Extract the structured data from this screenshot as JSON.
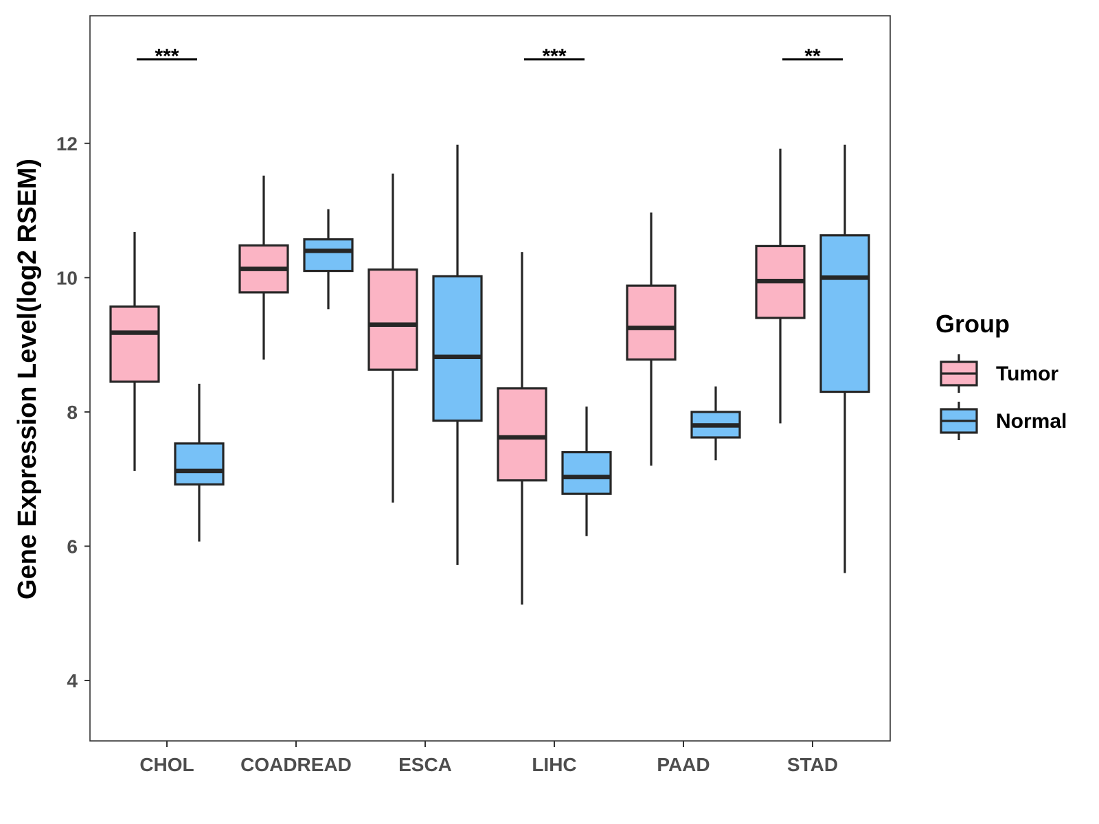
{
  "chart_data": {
    "type": "boxplot",
    "title": "",
    "xlabel": "",
    "ylabel": "Gene Expression Level(log2 RSEM)",
    "ylim": [
      3.1,
      13.9
    ],
    "yticks": [
      4,
      6,
      8,
      10,
      12
    ],
    "grid": false,
    "categories": [
      "CHOL",
      "COADREAD",
      "ESCA",
      "LIHC",
      "PAAD",
      "STAD"
    ],
    "legend": {
      "title": "Group",
      "placement": "right",
      "entries": [
        {
          "name": "Tumor",
          "color": "#fbb4c4"
        },
        {
          "name": "Normal",
          "color": "#77c1f7"
        }
      ]
    },
    "series": [
      {
        "name": "Tumor",
        "color": "#fbb4c4",
        "boxes": [
          {
            "category": "CHOL",
            "whisker_low": 7.12,
            "q1": 8.45,
            "median": 9.18,
            "q3": 9.57,
            "whisker_high": 10.68
          },
          {
            "category": "COADREAD",
            "whisker_low": 8.78,
            "q1": 9.78,
            "median": 10.13,
            "q3": 10.48,
            "whisker_high": 11.52
          },
          {
            "category": "ESCA",
            "whisker_low": 6.65,
            "q1": 8.63,
            "median": 9.3,
            "q3": 10.12,
            "whisker_high": 11.55
          },
          {
            "category": "LIHC",
            "whisker_low": 5.13,
            "q1": 6.98,
            "median": 7.62,
            "q3": 8.35,
            "whisker_high": 10.38
          },
          {
            "category": "PAAD",
            "whisker_low": 7.2,
            "q1": 8.78,
            "median": 9.25,
            "q3": 9.88,
            "whisker_high": 10.97
          },
          {
            "category": "STAD",
            "whisker_low": 7.83,
            "q1": 9.4,
            "median": 9.95,
            "q3": 10.47,
            "whisker_high": 11.92
          }
        ]
      },
      {
        "name": "Normal",
        "color": "#77c1f7",
        "boxes": [
          {
            "category": "CHOL",
            "whisker_low": 6.07,
            "q1": 6.92,
            "median": 7.12,
            "q3": 7.53,
            "whisker_high": 8.42
          },
          {
            "category": "COADREAD",
            "whisker_low": 9.53,
            "q1": 10.1,
            "median": 10.4,
            "q3": 10.57,
            "whisker_high": 11.02
          },
          {
            "category": "ESCA",
            "whisker_low": 5.72,
            "q1": 7.87,
            "median": 8.82,
            "q3": 10.02,
            "whisker_high": 11.98
          },
          {
            "category": "LIHC",
            "whisker_low": 6.15,
            "q1": 6.78,
            "median": 7.03,
            "q3": 7.4,
            "whisker_high": 8.08
          },
          {
            "category": "PAAD",
            "whisker_low": 7.28,
            "q1": 7.62,
            "median": 7.8,
            "q3": 8.0,
            "whisker_high": 8.38
          },
          {
            "category": "STAD",
            "whisker_low": 5.6,
            "q1": 8.3,
            "median": 10.0,
            "q3": 10.63,
            "whisker_high": 11.98
          }
        ]
      }
    ],
    "annotations": [
      {
        "category": "CHOL",
        "label": "***",
        "y": 13.25
      },
      {
        "category": "LIHC",
        "label": "***",
        "y": 13.25
      },
      {
        "category": "STAD",
        "label": "**",
        "y": 13.25
      }
    ]
  }
}
